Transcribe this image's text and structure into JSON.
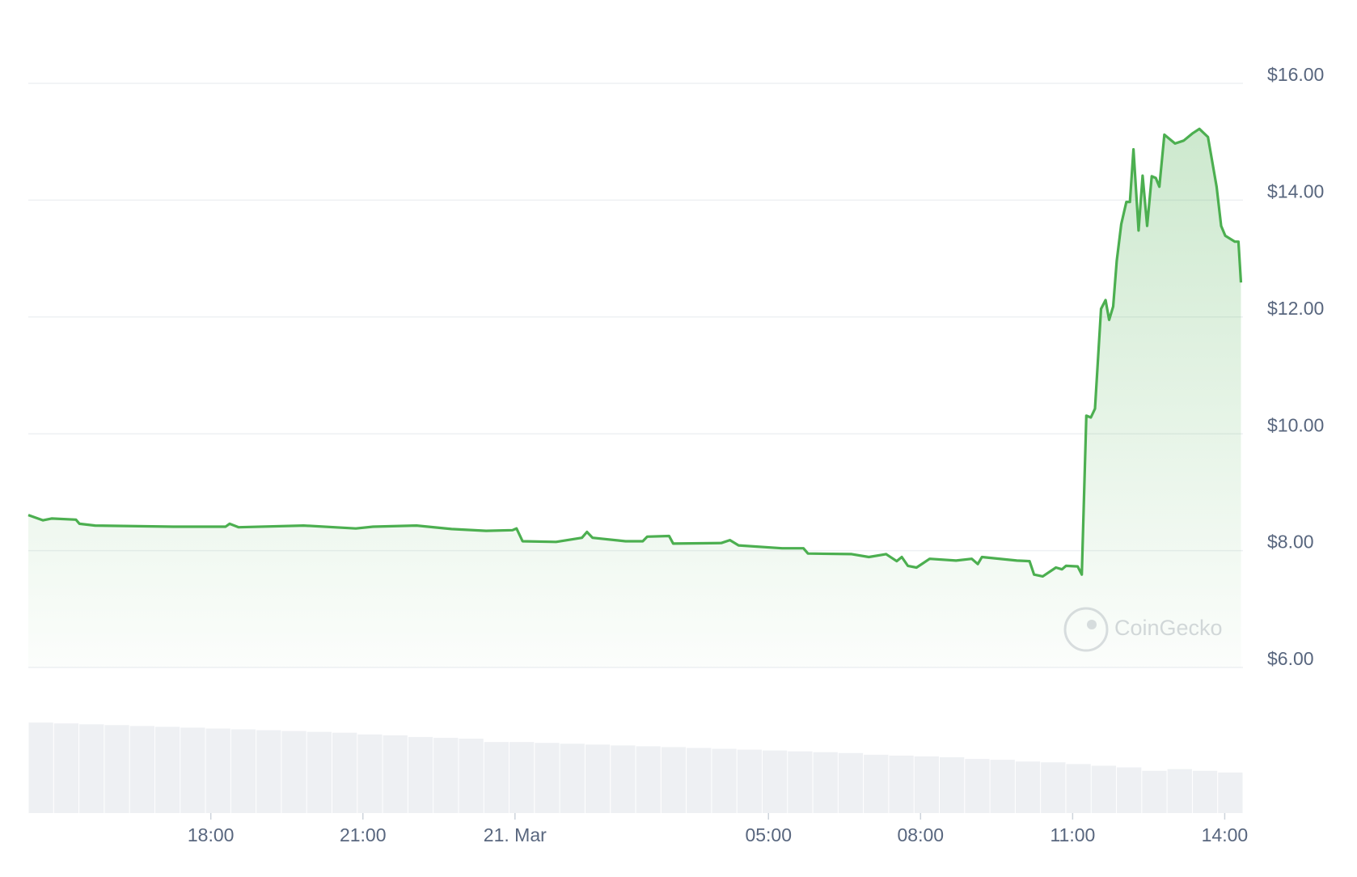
{
  "chart_data": {
    "type": "area",
    "watermark": "CoinGecko",
    "x": [
      -9.6,
      -9.31,
      -9.14,
      -8.66,
      -8.59,
      -8.28,
      -6.74,
      -5.71,
      -5.63,
      -5.45,
      -4.17,
      -3.14,
      -2.8,
      -1.94,
      -1.25,
      -0.57,
      -0.05,
      0.03,
      0.15,
      0.81,
      1.32,
      1.42,
      1.53,
      2.18,
      2.52,
      2.61,
      3.04,
      3.12,
      4.07,
      4.24,
      4.41,
      5.27,
      5.69,
      5.78,
      6.64,
      6.98,
      7.32,
      7.53,
      7.63,
      7.75,
      7.92,
      8.18,
      8.7,
      9.01,
      9.13,
      9.21,
      9.9,
      10.15,
      10.24,
      10.41,
      10.67,
      10.79,
      10.87,
      11.1,
      11.18,
      11.27,
      11.36,
      11.44,
      11.56,
      11.65,
      11.72,
      11.8,
      11.87,
      11.96,
      12.06,
      12.13,
      12.2,
      12.3,
      12.38,
      12.47,
      12.56,
      12.64,
      12.71,
      12.81,
      13.02,
      13.19,
      13.36,
      13.5,
      13.67,
      13.84,
      13.93,
      14.01,
      14.2,
      14.27,
      14.32
    ],
    "series": [
      {
        "color": "#4caf50",
        "values": [
          8.61,
          8.52,
          8.55,
          8.53,
          8.46,
          8.43,
          8.41,
          8.41,
          8.46,
          8.4,
          8.43,
          8.38,
          8.41,
          8.43,
          8.37,
          8.34,
          8.35,
          8.38,
          8.16,
          8.15,
          8.22,
          8.32,
          8.22,
          8.16,
          8.16,
          8.24,
          8.25,
          8.12,
          8.13,
          8.18,
          8.09,
          8.04,
          8.04,
          7.95,
          7.94,
          7.89,
          7.94,
          7.82,
          7.89,
          7.74,
          7.71,
          7.86,
          7.83,
          7.86,
          7.77,
          7.89,
          7.83,
          7.82,
          7.59,
          7.56,
          7.71,
          7.68,
          7.74,
          7.73,
          7.59,
          10.31,
          10.28,
          10.43,
          12.14,
          12.29,
          11.95,
          12.18,
          12.96,
          13.59,
          13.97,
          13.97,
          14.87,
          13.48,
          14.42,
          13.56,
          14.41,
          14.38,
          14.23,
          15.12,
          14.97,
          15.02,
          15.14,
          15.22,
          15.08,
          14.23,
          13.56,
          13.39,
          13.29,
          13.29,
          12.59
        ]
      }
    ],
    "volume": {
      "color": "#eef0f3",
      "lim": [
        0,
        110
      ],
      "values": [
        107,
        106,
        105,
        104,
        103,
        102,
        101,
        100,
        99,
        98,
        97,
        96,
        95,
        93,
        92,
        90,
        89,
        88,
        84,
        84,
        83,
        82,
        81,
        80,
        79,
        78,
        77,
        76,
        75,
        74,
        73,
        72,
        71,
        69,
        68,
        67,
        66,
        64,
        63,
        61,
        60,
        58,
        56,
        54,
        50,
        52,
        50,
        48
      ]
    },
    "xlim": [
      -9.6,
      14.36
    ],
    "xticks": [
      {
        "value": -6,
        "label": "18:00"
      },
      {
        "value": -3,
        "label": "21:00"
      },
      {
        "value": 0,
        "label": "21. Mar"
      },
      {
        "value": 5,
        "label": "05:00"
      },
      {
        "value": 8,
        "label": "08:00"
      },
      {
        "value": 11,
        "label": "11:00"
      },
      {
        "value": 14,
        "label": "14:00"
      }
    ],
    "ylim": [
      6,
      16
    ],
    "yticks": [
      {
        "value": 6,
        "label": "$6.00"
      },
      {
        "value": 8,
        "label": "$8.00"
      },
      {
        "value": 10,
        "label": "$10.00"
      },
      {
        "value": 12,
        "label": "$12.00"
      },
      {
        "value": 14,
        "label": "$14.00"
      },
      {
        "value": 16,
        "label": "$16.00"
      }
    ],
    "grid": true
  }
}
